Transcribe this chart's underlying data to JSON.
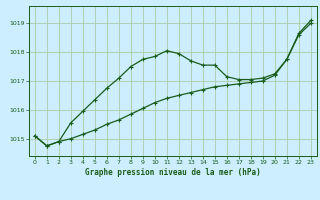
{
  "title": "Graphe pression niveau de la mer (hPa)",
  "bg_color": "#cceeff",
  "line_color": "#1a5c1a",
  "grid_color": "#aaccaa",
  "xlim": [
    -0.5,
    23.5
  ],
  "ylim": [
    1014.4,
    1019.6
  ],
  "yticks": [
    1015,
    1016,
    1017,
    1018,
    1019
  ],
  "xticks": [
    0,
    1,
    2,
    3,
    4,
    5,
    6,
    7,
    8,
    9,
    10,
    11,
    12,
    13,
    14,
    15,
    16,
    17,
    18,
    19,
    20,
    21,
    22,
    23
  ],
  "series1_x": [
    0,
    1,
    2,
    3,
    4,
    5,
    6,
    7,
    8,
    9,
    10,
    11,
    12,
    13,
    14,
    15,
    16,
    17,
    18,
    19,
    20,
    21,
    22,
    23
  ],
  "series1_y": [
    1015.1,
    1014.75,
    1014.9,
    1015.55,
    1015.95,
    1016.35,
    1016.75,
    1017.1,
    1017.5,
    1017.75,
    1017.85,
    1018.05,
    1017.95,
    1017.7,
    1017.55,
    1017.55,
    1017.15,
    1017.05,
    1017.05,
    1017.1,
    1017.25,
    1017.75,
    1018.65,
    1019.1
  ],
  "series2_x": [
    0,
    1,
    2,
    3,
    4,
    5,
    6,
    7,
    8,
    9,
    10,
    11,
    12,
    13,
    14,
    15,
    16,
    17,
    18,
    19,
    20,
    21,
    22,
    23
  ],
  "series2_y": [
    1015.1,
    1014.75,
    1014.9,
    1015.0,
    1015.15,
    1015.3,
    1015.5,
    1015.65,
    1015.85,
    1016.05,
    1016.25,
    1016.4,
    1016.5,
    1016.6,
    1016.7,
    1016.8,
    1016.85,
    1016.9,
    1016.95,
    1017.0,
    1017.2,
    1017.75,
    1018.6,
    1019.0
  ]
}
